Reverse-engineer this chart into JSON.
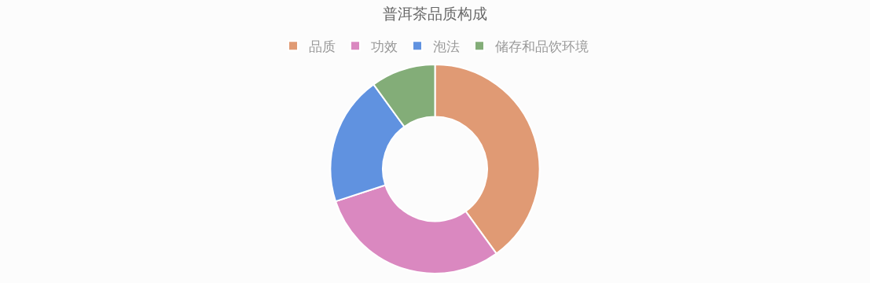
{
  "chart_data": {
    "type": "donut",
    "title": "普洱茶品质构成",
    "categories": [
      "品质",
      "功效",
      "泡法",
      "储存和品饮环境"
    ],
    "values": [
      40,
      30,
      20,
      10
    ],
    "colors": [
      "#e09a74",
      "#da88c0",
      "#6092e0",
      "#83ad78"
    ],
    "legend": "top"
  }
}
